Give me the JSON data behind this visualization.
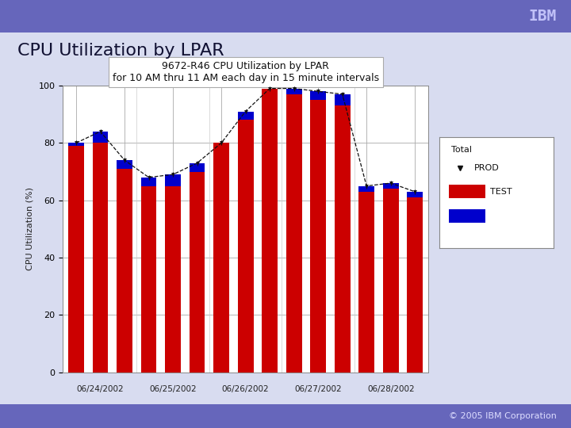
{
  "slide_title": "CPU Utilization by LPAR",
  "chart_title_line1": "9672-R46 CPU Utilization by LPAR",
  "chart_title_line2": "for 10 AM thru 11 AM each day in 15 minute intervals",
  "ylabel": "CPU Utilization (%)",
  "footer": "© 2005 IBM Corporation",
  "dates": [
    "06/24/2002",
    "06/25/2002",
    "06/26/2002",
    "06/27/2002",
    "06/28/2002"
  ],
  "prod_values": [
    79,
    80,
    71,
    65,
    65,
    70,
    80,
    88,
    99,
    97,
    95,
    93,
    63,
    64,
    61
  ],
  "test_values": [
    1,
    4,
    3,
    3,
    4,
    3,
    0,
    3,
    0,
    2,
    3,
    4,
    2,
    2,
    2
  ],
  "total_values": [
    80,
    84,
    74,
    68,
    69,
    73,
    80,
    91,
    99,
    99,
    98,
    97,
    65,
    66,
    63
  ],
  "total_err": [
    0.8,
    0.8,
    0.8,
    0.8,
    0.8,
    0.8,
    0.8,
    0.8,
    0.8,
    0.8,
    0.8,
    0.8,
    0.8,
    0.8,
    0.8
  ],
  "prod_color": "#cc0000",
  "test_color": "#0000cc",
  "total_color": "#111111",
  "slide_bg": "#8888cc",
  "content_bg": "#d8dcf0",
  "header_bg": "#6666bb",
  "footer_bg": "#6666bb",
  "chart_bg": "#ffffff",
  "ylim": [
    0,
    100
  ],
  "yticks": [
    0,
    20,
    40,
    60,
    80,
    100
  ],
  "bar_width": 0.65,
  "n_bars": 15,
  "n_groups": 5,
  "bars_per_group": 3,
  "group_centers": [
    1,
    4,
    7,
    10,
    13
  ]
}
